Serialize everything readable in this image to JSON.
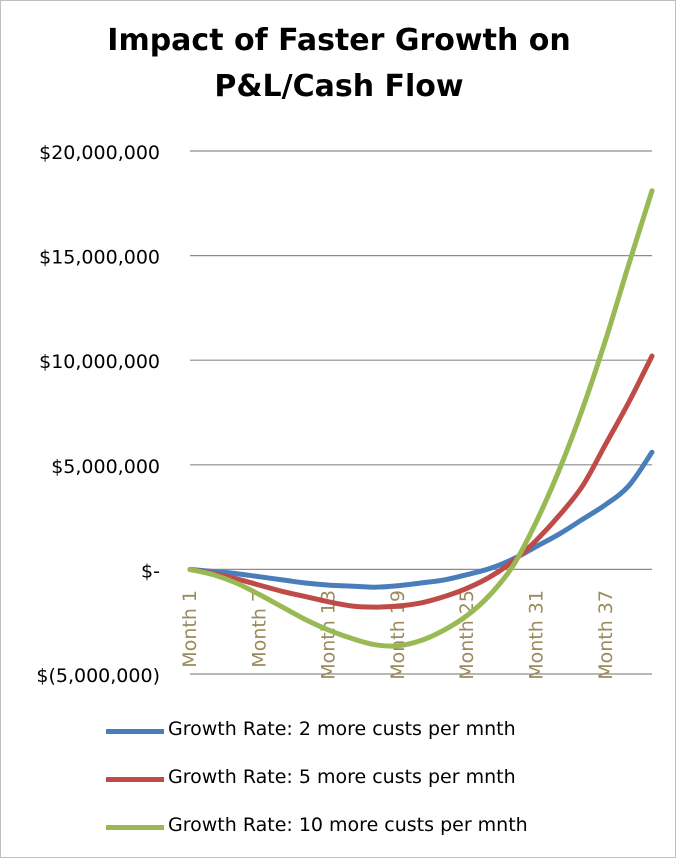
{
  "chart_data": {
    "type": "line",
    "title": [
      "Impact of Faster Growth on",
      "P&L/Cash Flow"
    ],
    "xlabel": "",
    "ylabel": "",
    "ylim": [
      -5000000,
      20000000
    ],
    "yticks": [
      {
        "value": 20000000,
        "label": "$20,000,000"
      },
      {
        "value": 15000000,
        "label": "$15,000,000"
      },
      {
        "value": 10000000,
        "label": "$10,000,000"
      },
      {
        "value": 5000000,
        "label": "$5,000,000"
      },
      {
        "value": 0,
        "label": "$-"
      },
      {
        "value": -5000000,
        "label": "$(5,000,000)"
      }
    ],
    "xrange": [
      1,
      41
    ],
    "xticks": [
      {
        "month": 1,
        "label": "Month 1"
      },
      {
        "month": 7,
        "label": "Month 7"
      },
      {
        "month": 13,
        "label": "Month 13"
      },
      {
        "month": 19,
        "label": "Month 19"
      },
      {
        "month": 25,
        "label": "Month 25"
      },
      {
        "month": 31,
        "label": "Month 31"
      },
      {
        "month": 37,
        "label": "Month 37"
      }
    ],
    "grid": true,
    "legend_position": "bottom",
    "series": [
      {
        "name": "Growth Rate: 2 more custs per mnth",
        "color": "#4a7ebb",
        "x": [
          1,
          3,
          5,
          7,
          9,
          11,
          13,
          15,
          17,
          19,
          21,
          23,
          25,
          27,
          29,
          31,
          33,
          35,
          37,
          39,
          41
        ],
        "y": [
          0,
          -100000,
          -200000,
          -350000,
          -500000,
          -650000,
          -750000,
          -800000,
          -850000,
          -780000,
          -650000,
          -500000,
          -250000,
          50000,
          500000,
          1100000,
          1700000,
          2400000,
          3100000,
          4000000,
          5600000
        ]
      },
      {
        "name": "Growth Rate: 5 more custs per mnth",
        "color": "#be4b48",
        "x": [
          1,
          3,
          5,
          7,
          9,
          11,
          13,
          15,
          17,
          19,
          21,
          23,
          25,
          27,
          29,
          31,
          33,
          35,
          37,
          39,
          41
        ],
        "y": [
          0,
          -200000,
          -450000,
          -750000,
          -1050000,
          -1300000,
          -1550000,
          -1750000,
          -1800000,
          -1750000,
          -1600000,
          -1300000,
          -900000,
          -350000,
          400000,
          1400000,
          2600000,
          4000000,
          6000000,
          8000000,
          10200000
        ]
      },
      {
        "name": "Growth Rate: 10 more custs per mnth",
        "color": "#98b954",
        "x": [
          1,
          3,
          5,
          7,
          9,
          11,
          13,
          15,
          17,
          19,
          21,
          23,
          25,
          27,
          29,
          31,
          33,
          35,
          37,
          39,
          41
        ],
        "y": [
          0,
          -250000,
          -650000,
          -1200000,
          -1800000,
          -2400000,
          -2900000,
          -3300000,
          -3600000,
          -3650000,
          -3400000,
          -2900000,
          -2200000,
          -1200000,
          200000,
          2300000,
          4800000,
          7700000,
          11000000,
          14600000,
          18100000
        ]
      }
    ]
  }
}
